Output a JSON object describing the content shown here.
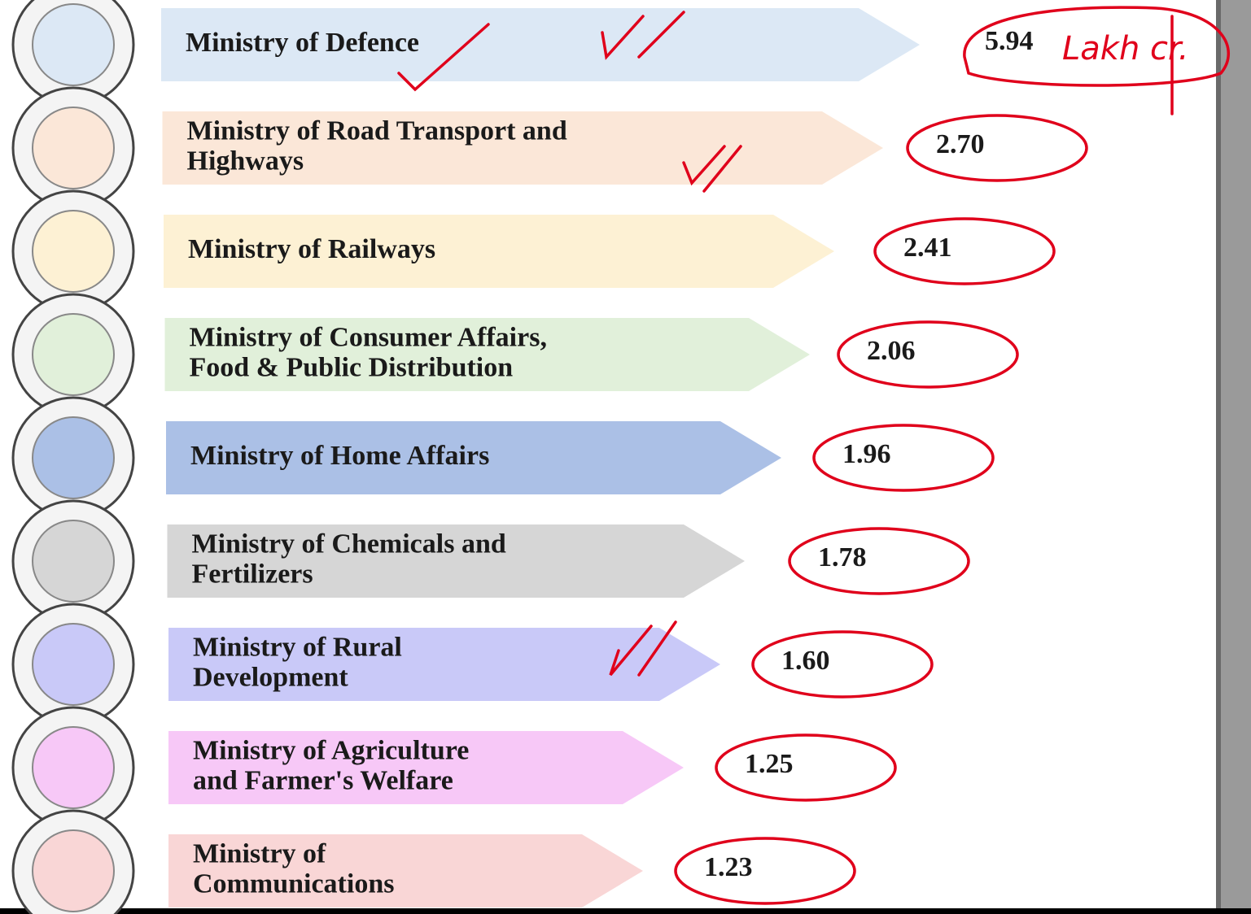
{
  "annotation": "Lakh cr.",
  "items": [
    {
      "lines": [
        "Ministry of Defence"
      ],
      "value": "5.94"
    },
    {
      "lines": [
        "Ministry of Road Transport and",
        "Highways"
      ],
      "value": "2.70"
    },
    {
      "lines": [
        "Ministry of Railways"
      ],
      "value": "2.41"
    },
    {
      "lines": [
        "Ministry of Consumer Affairs,",
        "Food & Public Distribution"
      ],
      "value": "2.06"
    },
    {
      "lines": [
        "Ministry of Home Affairs"
      ],
      "value": "1.96"
    },
    {
      "lines": [
        "Ministry of Chemicals and",
        "Fertilizers"
      ],
      "value": "1.78"
    },
    {
      "lines": [
        "Ministry of Rural",
        "Development"
      ],
      "value": "1.60"
    },
    {
      "lines": [
        "Ministry of Agriculture",
        "and Farmer's Welfare"
      ],
      "value": "1.25"
    },
    {
      "lines": [
        "Ministry of",
        "Communications"
      ],
      "value": "1.23"
    }
  ]
}
